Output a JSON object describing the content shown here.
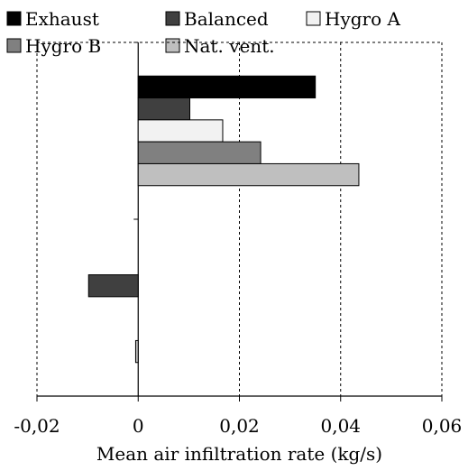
{
  "chart_data": {
    "type": "bar",
    "orientation": "horizontal",
    "title": "",
    "xlabel": "Mean air infiltration rate (kg/s)",
    "ylabel": "",
    "xlim": [
      -0.02,
      0.06
    ],
    "x_ticks": [
      "-0,02",
      "0",
      "0,02",
      "0,04",
      "0,06"
    ],
    "grid": "vertical dashed",
    "legend_position": "top",
    "categories": [
      "",
      ""
    ],
    "series": [
      {
        "name": "Exhaust",
        "color": "#000000",
        "values": [
          0.035,
          0.0
        ]
      },
      {
        "name": "Balanced",
        "color": "#404040",
        "values": [
          0.0102,
          -0.0098
        ]
      },
      {
        "name": "Hygro A",
        "color": "#f2f2f2",
        "values": [
          0.0167,
          0.0
        ]
      },
      {
        "name": "Hygro B",
        "color": "#808080",
        "values": [
          0.0242,
          0.0
        ]
      },
      {
        "name": "Nat. vent.",
        "color": "#bfbfbf",
        "values": [
          0.0436,
          -0.0005
        ]
      }
    ]
  }
}
